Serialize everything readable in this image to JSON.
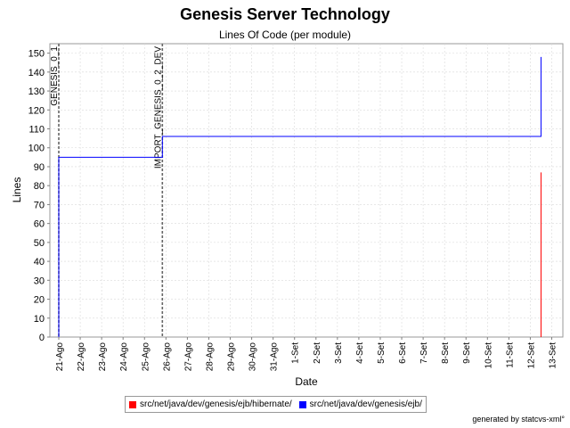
{
  "header": {
    "title": "Genesis Server Technology",
    "subtitle": "Lines Of Code (per module)"
  },
  "footer": {
    "credit": "generated by statcvs-xml°"
  },
  "chart_data": {
    "type": "line",
    "step": true,
    "title": "Genesis Server Technology",
    "subtitle": "Lines Of Code (per module)",
    "xlabel": "Date",
    "ylabel": "Lines",
    "x_start": "21-Ago",
    "x_end": "13-Set",
    "x_ticks": [
      "21-Ago",
      "22-Ago",
      "23-Ago",
      "24-Ago",
      "25-Ago",
      "26-Ago",
      "27-Ago",
      "28-Ago",
      "29-Ago",
      "30-Ago",
      "31-Ago",
      "1-Set",
      "2-Set",
      "3-Set",
      "4-Set",
      "5-Set",
      "6-Set",
      "7-Set",
      "8-Set",
      "9-Set",
      "10-Set",
      "11-Set",
      "12-Set",
      "13-Set"
    ],
    "ylim": [
      0,
      155
    ],
    "y_ticks": [
      0,
      10,
      20,
      30,
      40,
      50,
      60,
      70,
      80,
      90,
      100,
      110,
      120,
      130,
      140,
      150
    ],
    "grid": true,
    "legend_position": "bottom",
    "markers": [
      {
        "label": "GENESIS_0_1",
        "x": "21-Ago"
      },
      {
        "label": "IMPORT_GENESIS_0_2_DEV",
        "x": "25-Ago 20:00"
      }
    ],
    "series": [
      {
        "name": "src/net/java/dev/genesis/ejb/hibernate/",
        "color": "#ff0000",
        "points": [
          {
            "x": "12-Set 12:00",
            "y": 0
          },
          {
            "x": "12-Set 12:00",
            "y": 87
          }
        ]
      },
      {
        "name": "src/net/java/dev/genesis/ejb/",
        "color": "#0000ff",
        "points": [
          {
            "x": "21-Ago",
            "y": 0
          },
          {
            "x": "21-Ago",
            "y": 95
          },
          {
            "x": "25-Ago 20:00",
            "y": 95
          },
          {
            "x": "25-Ago 20:00",
            "y": 106
          },
          {
            "x": "12-Set 12:00",
            "y": 106
          },
          {
            "x": "12-Set 12:00",
            "y": 148
          }
        ]
      }
    ]
  }
}
